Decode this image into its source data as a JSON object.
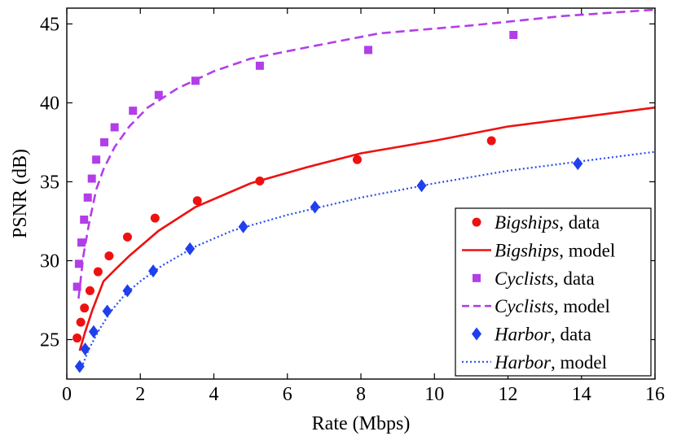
{
  "chart_data": {
    "type": "line",
    "xlabel": "Rate (Mbps)",
    "ylabel": "PSNR (dB)",
    "xlim": [
      0,
      16
    ],
    "ylim": [
      22.5,
      46
    ],
    "xticks": [
      0,
      2,
      4,
      6,
      8,
      10,
      12,
      14,
      16
    ],
    "yticks": [
      25,
      30,
      35,
      40,
      45
    ],
    "grid": false,
    "legend_position": "bottom-right",
    "series": [
      {
        "name": "Bigships, data",
        "legend_italic": "Bigships",
        "legend_rest": ", data",
        "kind": "scatter",
        "marker": "circle",
        "color": "#ee1111",
        "x": [
          0.28,
          0.38,
          0.48,
          0.63,
          0.85,
          1.15,
          1.65,
          2.4,
          3.55,
          5.25,
          7.9,
          11.55
        ],
        "y": [
          25.1,
          26.1,
          27.0,
          28.1,
          29.3,
          30.3,
          31.5,
          32.7,
          33.8,
          35.05,
          36.4,
          37.6
        ]
      },
      {
        "name": "Bigships, model",
        "legend_italic": "Bigships",
        "legend_rest": ", model",
        "kind": "line",
        "dash": "solid",
        "color": "#ee1111",
        "x": [
          0.35,
          0.5,
          0.7,
          1.0,
          1.3,
          1.7,
          2.5,
          3.5,
          5.0,
          6.5,
          8.0,
          10.0,
          12.0,
          14.0,
          16.0
        ],
        "y": [
          24.3,
          25.5,
          26.9,
          28.7,
          29.4,
          30.3,
          31.9,
          33.4,
          34.9,
          35.9,
          36.8,
          37.6,
          38.5,
          39.1,
          39.7
        ]
      },
      {
        "name": "Cyclists, data",
        "legend_italic": "Cyclists",
        "legend_rest": ", data",
        "kind": "scatter",
        "marker": "square",
        "color": "#b23ee8",
        "x": [
          0.28,
          0.33,
          0.4,
          0.47,
          0.57,
          0.68,
          0.8,
          1.02,
          1.3,
          1.8,
          2.5,
          3.5,
          5.25,
          8.2,
          12.15
        ],
        "y": [
          28.35,
          29.8,
          31.15,
          32.6,
          34.0,
          35.2,
          36.4,
          37.5,
          38.45,
          39.5,
          40.5,
          41.4,
          42.35,
          43.35,
          44.3
        ]
      },
      {
        "name": "Cyclists, model",
        "legend_italic": "Cyclists",
        "legend_rest": ", model",
        "kind": "line",
        "dash": "dashed",
        "color": "#b23ee8",
        "x": [
          0.32,
          0.45,
          0.6,
          0.8,
          1.0,
          1.3,
          1.7,
          2.2,
          3.0,
          4.0,
          5.0,
          6.5,
          8.5,
          11.0,
          13.5,
          16.0
        ],
        "y": [
          27.6,
          30.3,
          32.3,
          34.5,
          35.8,
          37.2,
          38.5,
          39.7,
          40.9,
          42.0,
          42.8,
          43.5,
          44.4,
          44.9,
          45.5,
          45.9
        ]
      },
      {
        "name": "Harbor, data",
        "legend_italic": "Harbor",
        "legend_rest": ", data",
        "kind": "scatter",
        "marker": "diamond",
        "color": "#1f3fee",
        "x": [
          0.35,
          0.5,
          0.73,
          1.1,
          1.65,
          2.35,
          3.35,
          4.8,
          6.75,
          9.65,
          13.9
        ],
        "y": [
          23.3,
          24.4,
          25.5,
          26.8,
          28.1,
          29.35,
          30.75,
          32.15,
          33.4,
          34.75,
          36.15
        ]
      },
      {
        "name": "Harbor, model",
        "legend_italic": "Harbor",
        "legend_rest": ", model",
        "kind": "line",
        "dash": "dotted",
        "color": "#2a4cf0",
        "x": [
          0.4,
          0.6,
          0.9,
          1.2,
          1.6,
          2.0,
          2.6,
          3.5,
          4.5,
          6.0,
          8.0,
          10.0,
          12.0,
          14.0,
          16.0
        ],
        "y": [
          23.2,
          24.4,
          25.7,
          26.8,
          27.9,
          28.7,
          29.7,
          30.9,
          31.9,
          32.9,
          34.0,
          34.9,
          35.7,
          36.3,
          36.9
        ]
      }
    ]
  }
}
